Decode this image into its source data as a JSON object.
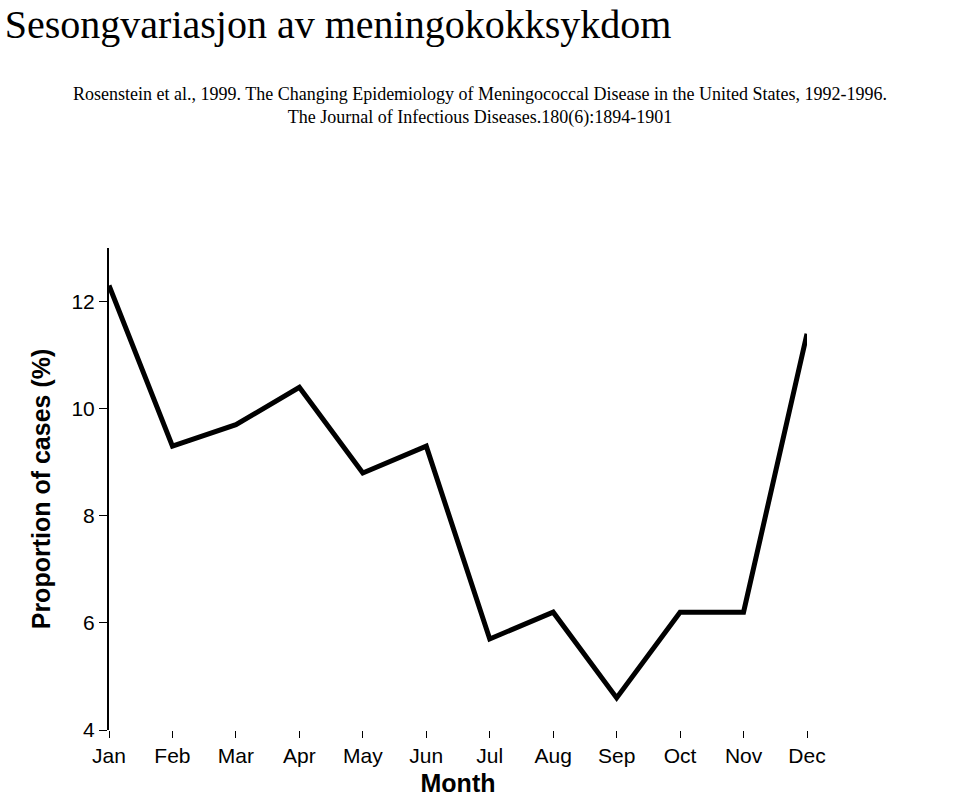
{
  "chart_data": {
    "type": "line",
    "title": "Sesongvariasjon av meningokokksykdom",
    "subtitle": [
      "Rosenstein et al., 1999. The Changing Epidemiology of Meningococcal Disease in the United States, 1992-1996.",
      "The Journal of Infectious Diseases.180(6):1894-1901"
    ],
    "x_label": "Month",
    "y_label": "Proportion of cases (%)",
    "categories": [
      "Jan",
      "Feb",
      "Mar",
      "Apr",
      "May",
      "Jun",
      "Jul",
      "Aug",
      "Sep",
      "Oct",
      "Nov",
      "Dec"
    ],
    "values": [
      12.3,
      9.3,
      9.7,
      10.4,
      8.8,
      9.3,
      5.7,
      6.2,
      4.6,
      6.2,
      6.2,
      11.4
    ],
    "color": "#000000",
    "ylim": [
      4,
      13
    ],
    "yticks": [
      4,
      6,
      8,
      10,
      12
    ],
    "grid": false
  }
}
